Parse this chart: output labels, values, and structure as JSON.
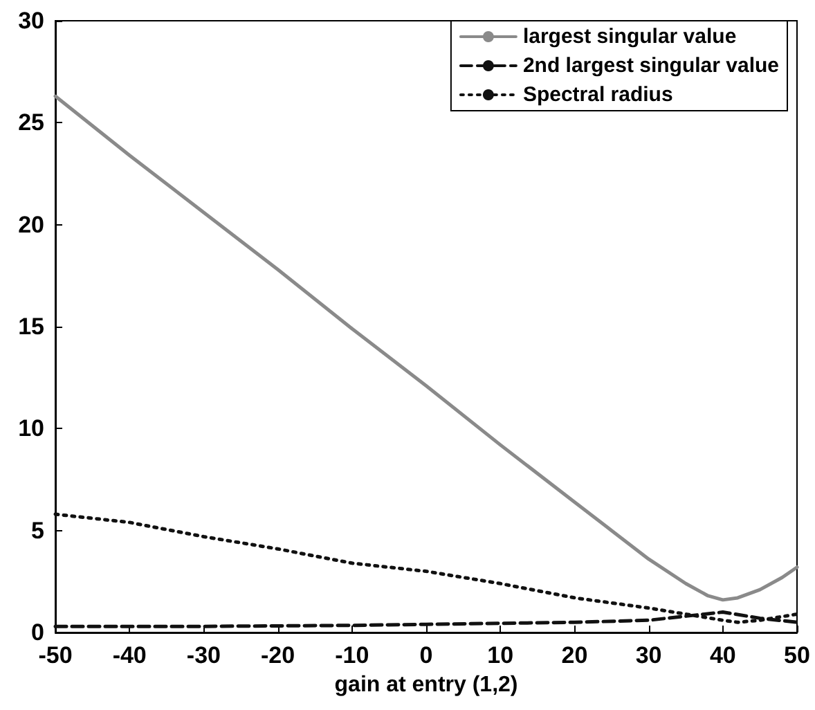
{
  "chart_data": {
    "type": "line",
    "xlabel": "gain at entry (1,2)",
    "xlim": [
      -50,
      50
    ],
    "xticks": [
      -50,
      -40,
      -30,
      -20,
      -10,
      0,
      10,
      20,
      30,
      40,
      50
    ],
    "ylim": [
      0,
      30
    ],
    "yticks": [
      0,
      5,
      10,
      15,
      20,
      25,
      30
    ],
    "grid": false,
    "legend": "top right",
    "marker": "none",
    "series": [
      {
        "name": "largest singular value",
        "color": "#8a8a8a",
        "line_style": "solid",
        "x": [
          -50,
          -40,
          -30,
          -20,
          -10,
          0,
          10,
          20,
          25,
          30,
          35,
          38,
          40,
          42,
          45,
          48,
          50
        ],
        "values": [
          26.3,
          23.4,
          20.6,
          17.8,
          14.9,
          12.1,
          9.2,
          6.4,
          5.0,
          3.6,
          2.4,
          1.8,
          1.6,
          1.7,
          2.1,
          2.7,
          3.2
        ]
      },
      {
        "name": "2nd largest singular value",
        "color": "#111111",
        "line_style": "dashed",
        "x": [
          -50,
          -30,
          -10,
          0,
          10,
          20,
          30,
          35,
          40,
          45,
          50
        ],
        "values": [
          0.3,
          0.3,
          0.35,
          0.4,
          0.45,
          0.5,
          0.6,
          0.8,
          1.0,
          0.7,
          0.5
        ]
      },
      {
        "name": "Spectral radius",
        "color": "#111111",
        "line_style": "dotted",
        "x": [
          -50,
          -40,
          -30,
          -20,
          -10,
          0,
          10,
          20,
          30,
          35,
          40,
          42,
          45,
          50
        ],
        "values": [
          5.8,
          5.4,
          4.7,
          4.1,
          3.4,
          3.0,
          2.4,
          1.7,
          1.2,
          0.9,
          0.6,
          0.5,
          0.6,
          0.9
        ]
      }
    ]
  }
}
